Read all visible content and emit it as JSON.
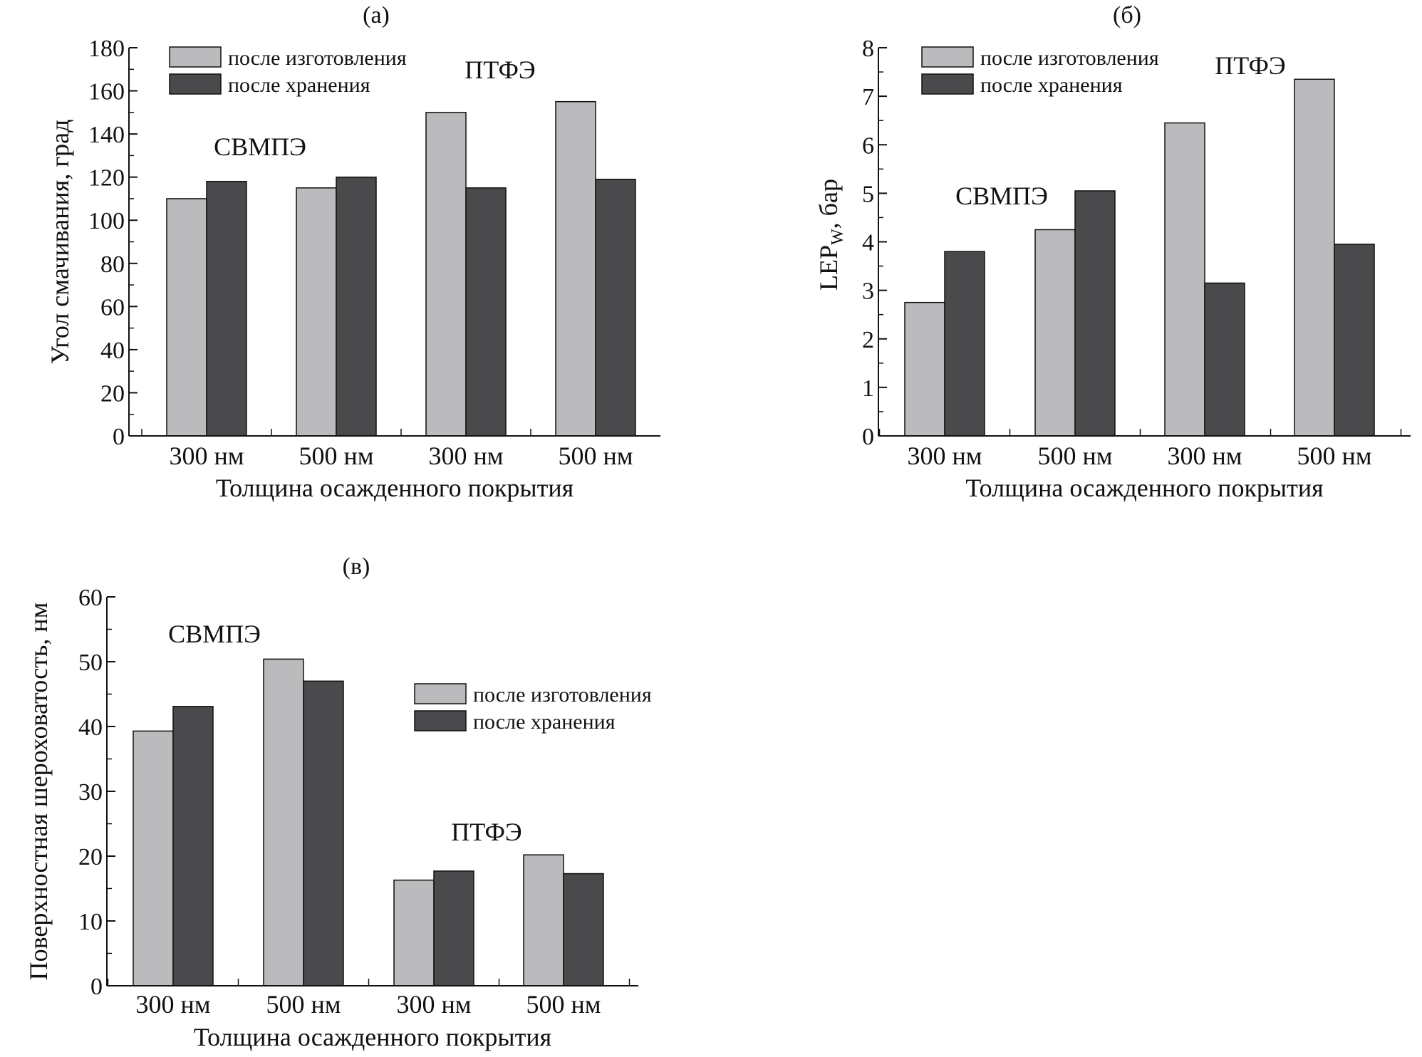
{
  "colors": {
    "series_1": "#bbbbbd",
    "series_2": "#4a4a4c",
    "stroke": "#111111"
  },
  "chart_data": [
    {
      "type": "bar",
      "panel": "(а)",
      "categories": [
        "300 нм",
        "500 нм",
        "300 нм",
        "500 нм"
      ],
      "series": [
        {
          "name": "после изготовления",
          "values": [
            110,
            115,
            150,
            155
          ]
        },
        {
          "name": "после хранения",
          "values": [
            118,
            120,
            115,
            119
          ]
        }
      ],
      "xlabel": "Толщина осажденного покрытия",
      "ylabel": "Угол смачивания, град",
      "ylim": [
        0,
        180
      ],
      "yticks": [
        0,
        20,
        40,
        60,
        80,
        100,
        120,
        140,
        160,
        180
      ],
      "annotations": [
        {
          "text": "СВМПЭ",
          "group": "left"
        },
        {
          "text": "ПТФЭ",
          "group": "right"
        }
      ],
      "legend": "top-left",
      "grid": false
    },
    {
      "type": "bar",
      "panel": "(б)",
      "categories": [
        "300 нм",
        "500 нм",
        "300 нм",
        "500 нм"
      ],
      "series": [
        {
          "name": "после изготовления",
          "values": [
            2.75,
            4.25,
            6.45,
            7.35
          ]
        },
        {
          "name": "после хранения",
          "values": [
            3.8,
            5.05,
            3.15,
            3.95
          ]
        }
      ],
      "xlabel": "Толщина осажденного покрытия",
      "ylabel_main": "LEP",
      "ylabel_sub": "W",
      "ylabel_rest": ", бар",
      "ylim": [
        0,
        8
      ],
      "yticks": [
        0,
        1,
        2,
        3,
        4,
        5,
        6,
        7,
        8
      ],
      "annotations": [
        {
          "text": "СВМПЭ",
          "group": "left"
        },
        {
          "text": "ПТФЭ",
          "group": "right"
        }
      ],
      "legend": "top-left",
      "grid": false
    },
    {
      "type": "bar",
      "panel": "(в)",
      "categories": [
        "300 нм",
        "500 нм",
        "300 нм",
        "500 нм"
      ],
      "series": [
        {
          "name": "после изготовления",
          "values": [
            39.3,
            50.4,
            16.3,
            20.2
          ]
        },
        {
          "name": "после хранения",
          "values": [
            43.1,
            47.0,
            17.7,
            17.3
          ]
        }
      ],
      "xlabel": "Толщина осажденного покрытия",
      "ylabel": "Поверхностная шероховатость, нм",
      "ylim": [
        0,
        60
      ],
      "yticks": [
        0,
        10,
        20,
        30,
        40,
        50,
        60
      ],
      "annotations": [
        {
          "text": "СВМПЭ",
          "group": "left"
        },
        {
          "text": "ПТФЭ",
          "group": "right"
        }
      ],
      "legend": "top-right",
      "grid": false
    }
  ]
}
